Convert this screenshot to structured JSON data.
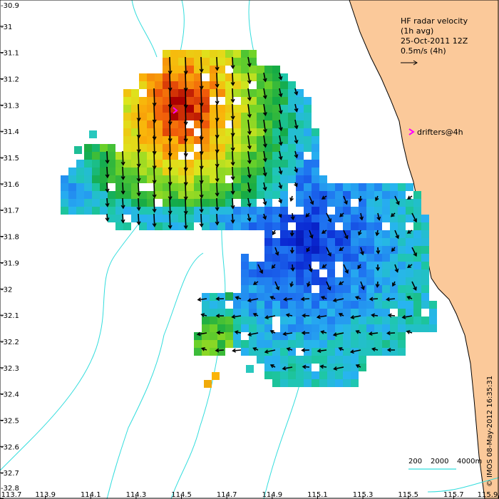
{
  "chart_data": {
    "type": "heatmap",
    "title_lines": [
      "HF radar velocity",
      "(1h avg)",
      "25-Oct-2011 12Z",
      "0.5m/s (4h)"
    ],
    "drifters_label": "drifters@4h",
    "credit": "© IMOS 08-May-2012 16:35:31",
    "depth_legend": [
      "200",
      "2000",
      "4000m"
    ],
    "xlim": [
      113.7,
      115.9
    ],
    "ylim": [
      -32.8,
      -30.9
    ],
    "x_ticks": [
      "113.7",
      "113.9",
      "114.1",
      "114.3",
      "114.5",
      "114.7",
      "114.9",
      "115.1",
      "115.3",
      "115.5",
      "115.7",
      "115.9"
    ],
    "y_ticks": [
      "-30.9",
      "-31",
      "-31.1",
      "-31.2",
      "-31.3",
      "-31.4",
      "-31.5",
      "-31.6",
      "-31.7",
      "-31.8",
      "-31.9",
      "-32",
      "-32.1",
      "-32.2",
      "-32.3",
      "-32.4",
      "-32.5",
      "-32.6",
      "-32.7",
      "-32.8"
    ],
    "colors": {
      "land": "#fbc99a",
      "bathymetry": "#33dddd",
      "drifter": "#ff00ff",
      "arrow": "#000000"
    },
    "grid": false
  }
}
